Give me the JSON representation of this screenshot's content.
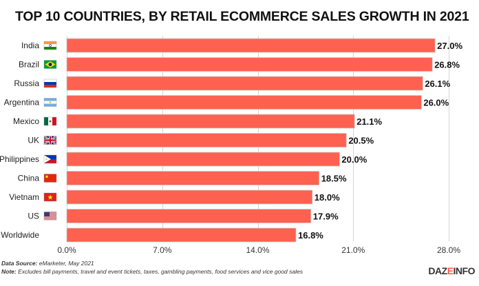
{
  "title": "TOP 10 COUNTRIES, BY RETAIL ECOMMERCE SALES GROWTH IN 2021",
  "chart_data": {
    "type": "bar",
    "orientation": "horizontal",
    "title": "TOP 10 COUNTRIES, BY RETAIL ECOMMERCE SALES GROWTH IN 2021",
    "xlabel": "",
    "ylabel": "",
    "categories": [
      "India",
      "Brazil",
      "Russia",
      "Argentina",
      "Mexico",
      "UK",
      "Philippines",
      "China",
      "Vietnam",
      "US",
      "Worldwide"
    ],
    "values": [
      27.0,
      26.8,
      26.1,
      26.0,
      21.1,
      20.5,
      20.0,
      18.5,
      18.0,
      17.9,
      16.8
    ],
    "value_labels": [
      "27.0%",
      "26.8%",
      "26.1%",
      "26.0%",
      "21.1%",
      "20.5%",
      "20.0%",
      "18.5%",
      "18.0%",
      "17.9%",
      "16.8%"
    ],
    "flags": [
      "india-flag",
      "brazil-flag",
      "russia-flag",
      "argentina-flag",
      "mexico-flag",
      "uk-flag",
      "philippines-flag",
      "china-flag",
      "vietnam-flag",
      "us-flag",
      null
    ],
    "xlim": [
      0,
      28
    ],
    "xticks": [
      0,
      7,
      14,
      21,
      28
    ],
    "xtick_labels": [
      "0.0%",
      "7.0%",
      "14.0%",
      "21.0%",
      "28.0%"
    ],
    "grid": "vertical",
    "bar_color": "#ff6150"
  },
  "footer": {
    "source_label": "Data Source:",
    "source_text": " eMarketer, May 2021",
    "note_label": "Note:",
    "note_text": " Excludes bill payments, travel and event tickets, taxes, gambling payments, food services and vice good sales",
    "logo_part1": "DAZ",
    "logo_part2": "E",
    "logo_part3": "INFO"
  }
}
